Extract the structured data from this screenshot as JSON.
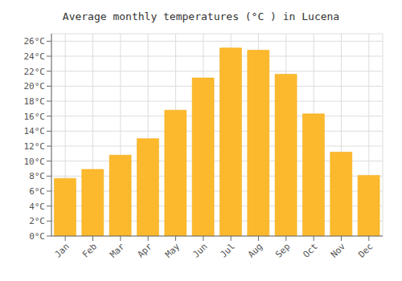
{
  "chart_data": {
    "type": "bar",
    "title": "Average monthly temperatures (°C ) in Lucena",
    "categories": [
      "Jan",
      "Feb",
      "Mar",
      "Apr",
      "May",
      "Jun",
      "Jul",
      "Aug",
      "Sep",
      "Oct",
      "Nov",
      "Dec"
    ],
    "values": [
      7.7,
      8.9,
      10.8,
      13.0,
      16.8,
      21.1,
      25.1,
      24.8,
      21.6,
      16.3,
      11.2,
      8.1
    ],
    "color": "#FDB92E",
    "ylim": [
      0,
      27
    ],
    "yticks": [
      {
        "value": 0,
        "label": "0°C"
      },
      {
        "value": 2,
        "label": "2°C"
      },
      {
        "value": 4,
        "label": "4°C"
      },
      {
        "value": 6,
        "label": "6°C"
      },
      {
        "value": 8,
        "label": "8°C"
      },
      {
        "value": 10,
        "label": "10°C"
      },
      {
        "value": 12,
        "label": "12°C"
      },
      {
        "value": 14,
        "label": "14°C"
      },
      {
        "value": 16,
        "label": "16°C"
      },
      {
        "value": 18,
        "label": "18°C"
      },
      {
        "value": 20,
        "label": "20°C"
      },
      {
        "value": 22,
        "label": "22°C"
      },
      {
        "value": 24,
        "label": "24°C"
      },
      {
        "value": 26,
        "label": "26°C"
      }
    ],
    "grid": true
  }
}
